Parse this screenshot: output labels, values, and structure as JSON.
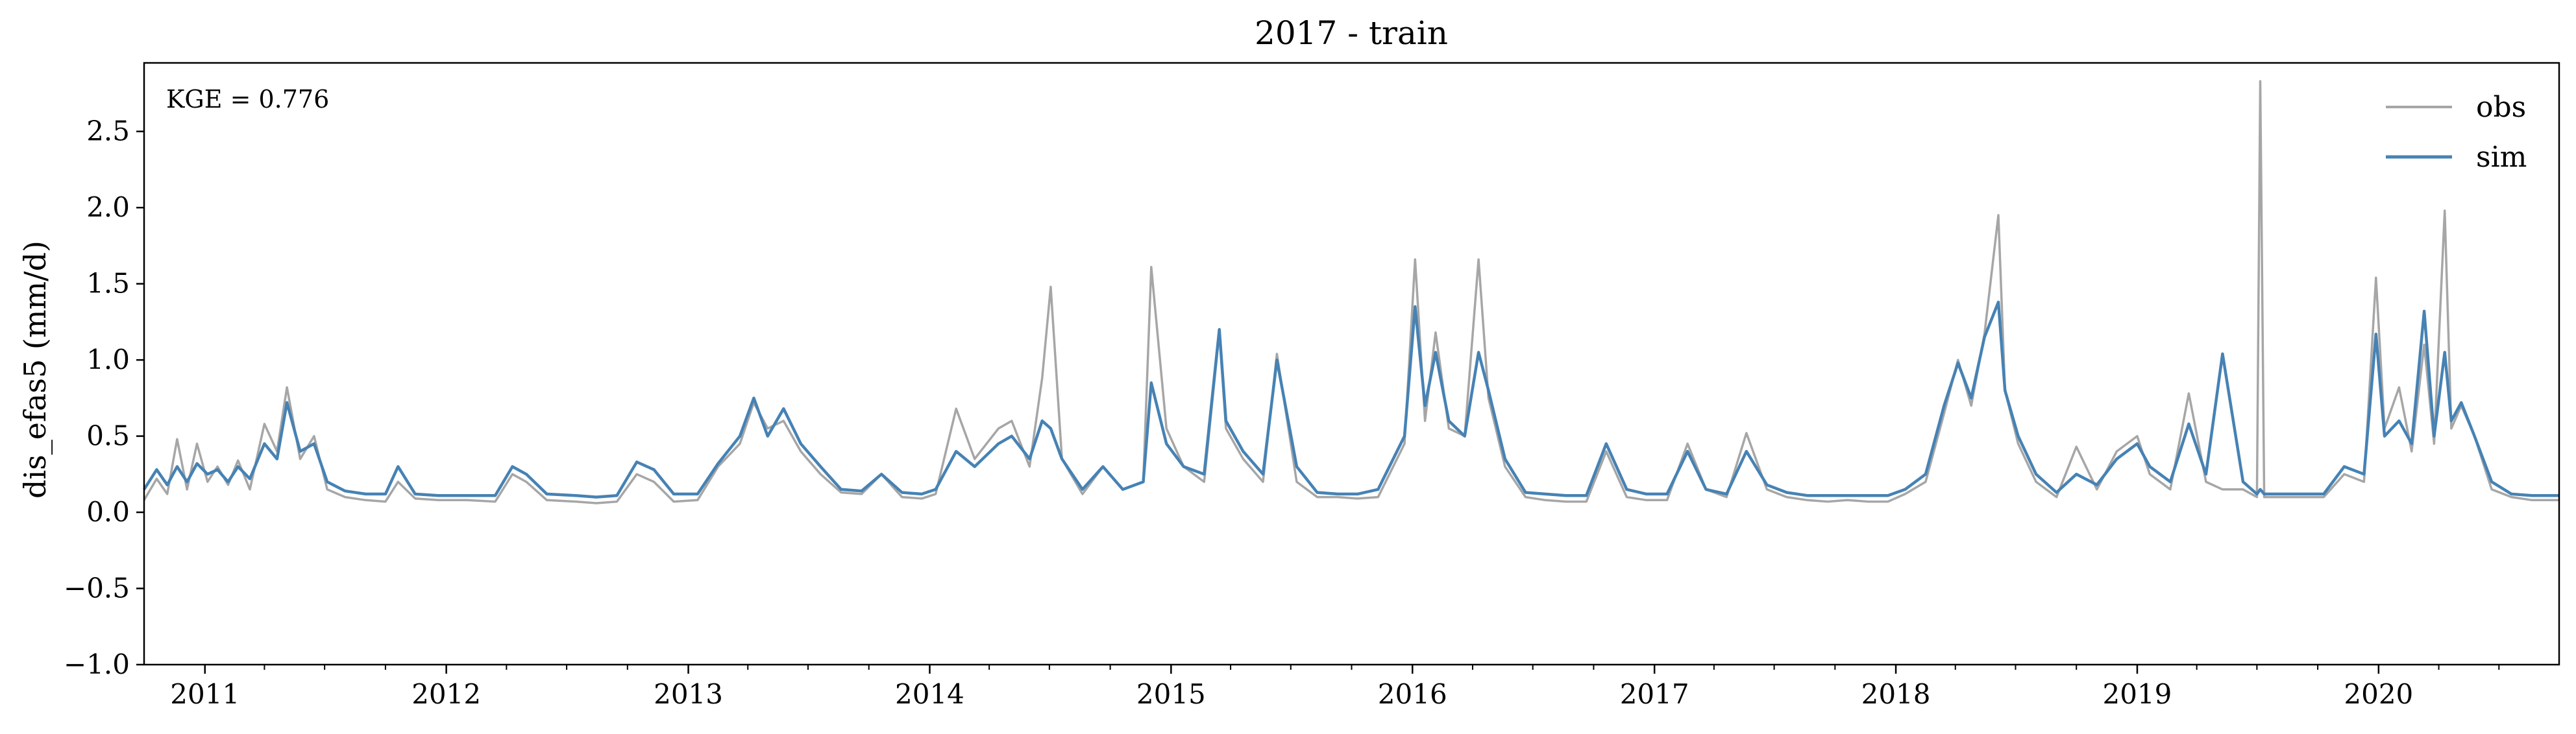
{
  "chart_data": {
    "type": "line",
    "title": "2017 - train",
    "xlabel": "",
    "ylabel": "dis_efas5 (mm/d)",
    "annotation": "KGE = 0.776",
    "xlim": [
      "2010-10-01",
      "2020-09-30"
    ],
    "ylim": [
      -1.0,
      2.95
    ],
    "yticks": [
      -1.0,
      -0.5,
      0.0,
      0.5,
      1.0,
      1.5,
      2.0,
      2.5
    ],
    "ytick_labels": [
      "−1.0",
      "−0.5",
      "0.0",
      "0.5",
      "1.0",
      "1.5",
      "2.0",
      "2.5"
    ],
    "xticks": [
      "2011-01-01",
      "2012-01-01",
      "2013-01-01",
      "2014-01-01",
      "2015-01-01",
      "2016-01-01",
      "2017-01-01",
      "2018-01-01",
      "2019-01-01",
      "2020-01-01"
    ],
    "xtick_labels": [
      "2011",
      "2012",
      "2013",
      "2014",
      "2015",
      "2016",
      "2017",
      "2018",
      "2019",
      "2020"
    ],
    "legend_position": "top-right",
    "grid": false,
    "series": [
      {
        "name": "obs",
        "color": "#a6a6a6",
        "x": [
          "2010-10-01",
          "2010-10-20",
          "2010-11-05",
          "2010-11-20",
          "2010-12-05",
          "2010-12-20",
          "2011-01-05",
          "2011-01-20",
          "2011-02-05",
          "2011-02-20",
          "2011-03-10",
          "2011-04-01",
          "2011-04-20",
          "2011-05-05",
          "2011-05-25",
          "2011-06-15",
          "2011-07-05",
          "2011-08-01",
          "2011-09-01",
          "2011-10-01",
          "2011-10-20",
          "2011-11-15",
          "2011-12-20",
          "2012-02-01",
          "2012-03-15",
          "2012-04-10",
          "2012-05-01",
          "2012-06-01",
          "2012-07-15",
          "2012-08-15",
          "2012-09-15",
          "2012-10-15",
          "2012-11-10",
          "2012-12-10",
          "2013-01-15",
          "2013-02-15",
          "2013-03-20",
          "2013-04-10",
          "2013-05-01",
          "2013-05-25",
          "2013-06-20",
          "2013-07-20",
          "2013-08-20",
          "2013-09-20",
          "2013-10-20",
          "2013-11-20",
          "2013-12-20",
          "2014-01-10",
          "2014-02-10",
          "2014-03-10",
          "2014-04-15",
          "2014-05-05",
          "2014-06-01",
          "2014-06-20",
          "2014-07-03",
          "2014-07-20",
          "2014-08-20",
          "2014-09-20",
          "2014-10-20",
          "2014-11-20",
          "2014-12-02",
          "2014-12-25",
          "2015-01-20",
          "2015-02-20",
          "2015-03-15",
          "2015-03-25",
          "2015-04-20",
          "2015-05-20",
          "2015-06-10",
          "2015-07-10",
          "2015-08-10",
          "2015-09-10",
          "2015-10-10",
          "2015-11-10",
          "2015-12-20",
          "2016-01-05",
          "2016-01-20",
          "2016-02-05",
          "2016-02-25",
          "2016-03-20",
          "2016-04-10",
          "2016-04-25",
          "2016-05-20",
          "2016-06-20",
          "2016-07-20",
          "2016-08-20",
          "2016-09-20",
          "2016-10-20",
          "2016-11-20",
          "2016-12-20",
          "2017-01-20",
          "2017-02-20",
          "2017-03-20",
          "2017-04-20",
          "2017-05-20",
          "2017-06-20",
          "2017-07-20",
          "2017-08-20",
          "2017-09-20",
          "2017-10-20",
          "2017-11-20",
          "2017-12-20",
          "2018-01-15",
          "2018-02-15",
          "2018-03-15",
          "2018-04-05",
          "2018-04-25",
          "2018-05-15",
          "2018-06-05",
          "2018-06-15",
          "2018-07-05",
          "2018-08-01",
          "2018-09-01",
          "2018-10-01",
          "2018-11-01",
          "2018-12-01",
          "2019-01-01",
          "2019-01-20",
          "2019-02-20",
          "2019-03-20",
          "2019-04-15",
          "2019-05-10",
          "2019-06-10",
          "2019-07-01",
          "2019-07-06",
          "2019-07-12",
          "2019-08-10",
          "2019-09-10",
          "2019-10-10",
          "2019-11-10",
          "2019-12-10",
          "2019-12-28",
          "2020-01-10",
          "2020-02-01",
          "2020-02-20",
          "2020-03-10",
          "2020-03-25",
          "2020-04-10",
          "2020-04-20",
          "2020-05-05",
          "2020-05-25",
          "2020-06-20",
          "2020-07-20",
          "2020-08-20",
          "2020-09-30"
        ],
        "y": [
          0.08,
          0.22,
          0.12,
          0.48,
          0.15,
          0.45,
          0.2,
          0.3,
          0.18,
          0.34,
          0.15,
          0.58,
          0.4,
          0.82,
          0.35,
          0.5,
          0.15,
          0.1,
          0.08,
          0.07,
          0.2,
          0.09,
          0.08,
          0.08,
          0.07,
          0.25,
          0.2,
          0.08,
          0.07,
          0.06,
          0.07,
          0.25,
          0.2,
          0.07,
          0.08,
          0.3,
          0.45,
          0.72,
          0.55,
          0.6,
          0.4,
          0.25,
          0.13,
          0.12,
          0.25,
          0.1,
          0.09,
          0.12,
          0.68,
          0.35,
          0.55,
          0.6,
          0.3,
          0.88,
          1.48,
          0.35,
          0.12,
          0.3,
          0.15,
          0.2,
          1.61,
          0.55,
          0.3,
          0.2,
          1.18,
          0.55,
          0.35,
          0.2,
          1.04,
          0.2,
          0.1,
          0.1,
          0.09,
          0.1,
          0.45,
          1.66,
          0.6,
          1.18,
          0.55,
          0.5,
          1.66,
          0.75,
          0.3,
          0.1,
          0.08,
          0.07,
          0.07,
          0.4,
          0.1,
          0.08,
          0.08,
          0.45,
          0.15,
          0.1,
          0.52,
          0.15,
          0.1,
          0.08,
          0.07,
          0.08,
          0.07,
          0.07,
          0.12,
          0.2,
          0.65,
          1.0,
          0.7,
          1.17,
          1.95,
          0.8,
          0.45,
          0.2,
          0.1,
          0.43,
          0.15,
          0.4,
          0.5,
          0.25,
          0.15,
          0.78,
          0.2,
          0.15,
          0.15,
          0.1,
          2.83,
          0.1,
          0.1,
          0.1,
          0.1,
          0.25,
          0.2,
          1.54,
          0.55,
          0.82,
          0.4,
          1.1,
          0.45,
          1.98,
          0.55,
          0.7,
          0.5,
          0.15,
          0.1,
          0.08,
          0.08
        ]
      },
      {
        "name": "sim",
        "color": "#4682b4",
        "x": [
          "2010-10-01",
          "2010-10-20",
          "2010-11-05",
          "2010-11-20",
          "2010-12-05",
          "2010-12-20",
          "2011-01-05",
          "2011-01-20",
          "2011-02-05",
          "2011-02-20",
          "2011-03-10",
          "2011-04-01",
          "2011-04-20",
          "2011-05-05",
          "2011-05-25",
          "2011-06-15",
          "2011-07-05",
          "2011-08-01",
          "2011-09-01",
          "2011-10-01",
          "2011-10-20",
          "2011-11-15",
          "2011-12-20",
          "2012-02-01",
          "2012-03-15",
          "2012-04-10",
          "2012-05-01",
          "2012-06-01",
          "2012-07-15",
          "2012-08-15",
          "2012-09-15",
          "2012-10-15",
          "2012-11-10",
          "2012-12-10",
          "2013-01-15",
          "2013-02-15",
          "2013-03-20",
          "2013-04-10",
          "2013-05-01",
          "2013-05-25",
          "2013-06-20",
          "2013-07-20",
          "2013-08-20",
          "2013-09-20",
          "2013-10-20",
          "2013-11-20",
          "2013-12-20",
          "2014-01-10",
          "2014-02-10",
          "2014-03-10",
          "2014-04-15",
          "2014-05-05",
          "2014-06-01",
          "2014-06-20",
          "2014-07-03",
          "2014-07-20",
          "2014-08-20",
          "2014-09-20",
          "2014-10-20",
          "2014-11-20",
          "2014-12-02",
          "2014-12-25",
          "2015-01-20",
          "2015-02-20",
          "2015-03-15",
          "2015-03-25",
          "2015-04-20",
          "2015-05-20",
          "2015-06-10",
          "2015-07-10",
          "2015-08-10",
          "2015-09-10",
          "2015-10-10",
          "2015-11-10",
          "2015-12-20",
          "2016-01-05",
          "2016-01-20",
          "2016-02-05",
          "2016-02-25",
          "2016-03-20",
          "2016-04-10",
          "2016-04-25",
          "2016-05-20",
          "2016-06-20",
          "2016-07-20",
          "2016-08-20",
          "2016-09-20",
          "2016-10-20",
          "2016-11-20",
          "2016-12-20",
          "2017-01-20",
          "2017-02-20",
          "2017-03-20",
          "2017-04-20",
          "2017-05-20",
          "2017-06-20",
          "2017-07-20",
          "2017-08-20",
          "2017-09-20",
          "2017-10-20",
          "2017-11-20",
          "2017-12-20",
          "2018-01-15",
          "2018-02-15",
          "2018-03-15",
          "2018-04-05",
          "2018-04-25",
          "2018-05-15",
          "2018-06-05",
          "2018-06-15",
          "2018-07-05",
          "2018-08-01",
          "2018-09-01",
          "2018-10-01",
          "2018-11-01",
          "2018-12-01",
          "2019-01-01",
          "2019-01-20",
          "2019-02-20",
          "2019-03-20",
          "2019-04-15",
          "2019-05-10",
          "2019-06-10",
          "2019-07-01",
          "2019-07-06",
          "2019-07-12",
          "2019-08-10",
          "2019-09-10",
          "2019-10-10",
          "2019-11-10",
          "2019-12-10",
          "2019-12-28",
          "2020-01-10",
          "2020-02-01",
          "2020-02-20",
          "2020-03-10",
          "2020-03-25",
          "2020-04-10",
          "2020-04-20",
          "2020-05-05",
          "2020-05-25",
          "2020-06-20",
          "2020-07-20",
          "2020-08-20",
          "2020-09-30"
        ],
        "y": [
          0.15,
          0.28,
          0.18,
          0.3,
          0.2,
          0.32,
          0.25,
          0.28,
          0.2,
          0.3,
          0.22,
          0.45,
          0.35,
          0.72,
          0.4,
          0.45,
          0.2,
          0.14,
          0.12,
          0.12,
          0.3,
          0.12,
          0.11,
          0.11,
          0.11,
          0.3,
          0.25,
          0.12,
          0.11,
          0.1,
          0.11,
          0.33,
          0.28,
          0.12,
          0.12,
          0.32,
          0.5,
          0.75,
          0.5,
          0.68,
          0.45,
          0.3,
          0.15,
          0.14,
          0.25,
          0.13,
          0.12,
          0.15,
          0.4,
          0.3,
          0.45,
          0.5,
          0.35,
          0.6,
          0.55,
          0.35,
          0.15,
          0.3,
          0.15,
          0.2,
          0.85,
          0.45,
          0.3,
          0.25,
          1.2,
          0.6,
          0.4,
          0.25,
          1.0,
          0.3,
          0.13,
          0.12,
          0.12,
          0.15,
          0.5,
          1.35,
          0.7,
          1.05,
          0.6,
          0.5,
          1.05,
          0.8,
          0.35,
          0.13,
          0.12,
          0.11,
          0.11,
          0.45,
          0.15,
          0.12,
          0.12,
          0.4,
          0.15,
          0.12,
          0.4,
          0.18,
          0.13,
          0.11,
          0.11,
          0.11,
          0.11,
          0.11,
          0.15,
          0.25,
          0.7,
          0.98,
          0.75,
          1.15,
          1.38,
          0.8,
          0.5,
          0.25,
          0.13,
          0.25,
          0.18,
          0.35,
          0.45,
          0.3,
          0.2,
          0.58,
          0.25,
          1.04,
          0.2,
          0.12,
          0.15,
          0.12,
          0.12,
          0.12,
          0.12,
          0.3,
          0.25,
          1.17,
          0.5,
          0.6,
          0.45,
          1.32,
          0.5,
          1.05,
          0.6,
          0.72,
          0.5,
          0.2,
          0.12,
          0.11,
          0.11
        ]
      }
    ]
  }
}
